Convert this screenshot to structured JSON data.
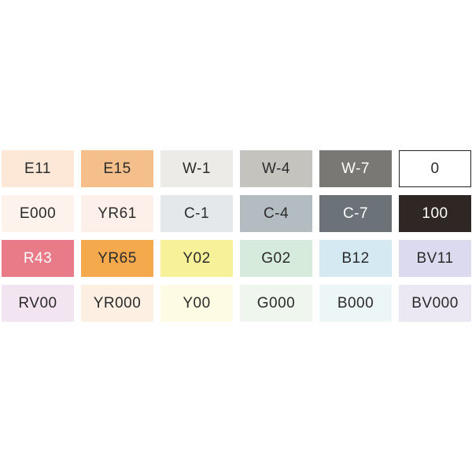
{
  "rows": [
    [
      {
        "label": "E11",
        "color": "#fde8d8",
        "text_color": "#2b2b2b"
      },
      {
        "label": "E15",
        "color": "#f4bf8a",
        "text_color": "#2b2b2b"
      },
      {
        "label": "W-1",
        "color": "#ecebe7",
        "text_color": "#2b2b2b"
      },
      {
        "label": "W-4",
        "color": "#c5c3be",
        "text_color": "#2b2b2b"
      },
      {
        "label": "W-7",
        "color": "#7a7874",
        "text_color": "#ffffff"
      },
      {
        "label": "0",
        "color": "#ffffff",
        "text_color": "#2b2b2b",
        "border": "#222222"
      }
    ],
    [
      {
        "label": "E000",
        "color": "#fef3ec",
        "text_color": "#2b2b2b"
      },
      {
        "label": "YR61",
        "color": "#fdefea",
        "text_color": "#2b2b2b"
      },
      {
        "label": "C-1",
        "color": "#e4e8ea",
        "text_color": "#2b2b2b"
      },
      {
        "label": "C-4",
        "color": "#b3bcc1",
        "text_color": "#2b2b2b"
      },
      {
        "label": "C-7",
        "color": "#6b7378",
        "text_color": "#ffffff"
      },
      {
        "label": "100",
        "color": "#2f2724",
        "text_color": "#ffffff"
      }
    ],
    [
      {
        "label": "R43",
        "color": "#e87b87",
        "text_color": "#ffffff"
      },
      {
        "label": "YR65",
        "color": "#f5a94d",
        "text_color": "#2b2b2b"
      },
      {
        "label": "Y02",
        "color": "#f7f29a",
        "text_color": "#2b2b2b"
      },
      {
        "label": "G02",
        "color": "#d6ebdb",
        "text_color": "#2b2b2b"
      },
      {
        "label": "B12",
        "color": "#d4e9f2",
        "text_color": "#2b2b2b"
      },
      {
        "label": "BV11",
        "color": "#dcdaef",
        "text_color": "#2b2b2b"
      }
    ],
    [
      {
        "label": "RV00",
        "color": "#f2e4f0",
        "text_color": "#2b2b2b"
      },
      {
        "label": "YR000",
        "color": "#fdf0e3",
        "text_color": "#2b2b2b"
      },
      {
        "label": "Y00",
        "color": "#fefbe5",
        "text_color": "#2b2b2b"
      },
      {
        "label": "G000",
        "color": "#eff6ee",
        "text_color": "#2b2b2b"
      },
      {
        "label": "B000",
        "color": "#edf6f6",
        "text_color": "#2b2b2b"
      },
      {
        "label": "BV000",
        "color": "#ebe7f3",
        "text_color": "#2b2b2b"
      }
    ]
  ]
}
